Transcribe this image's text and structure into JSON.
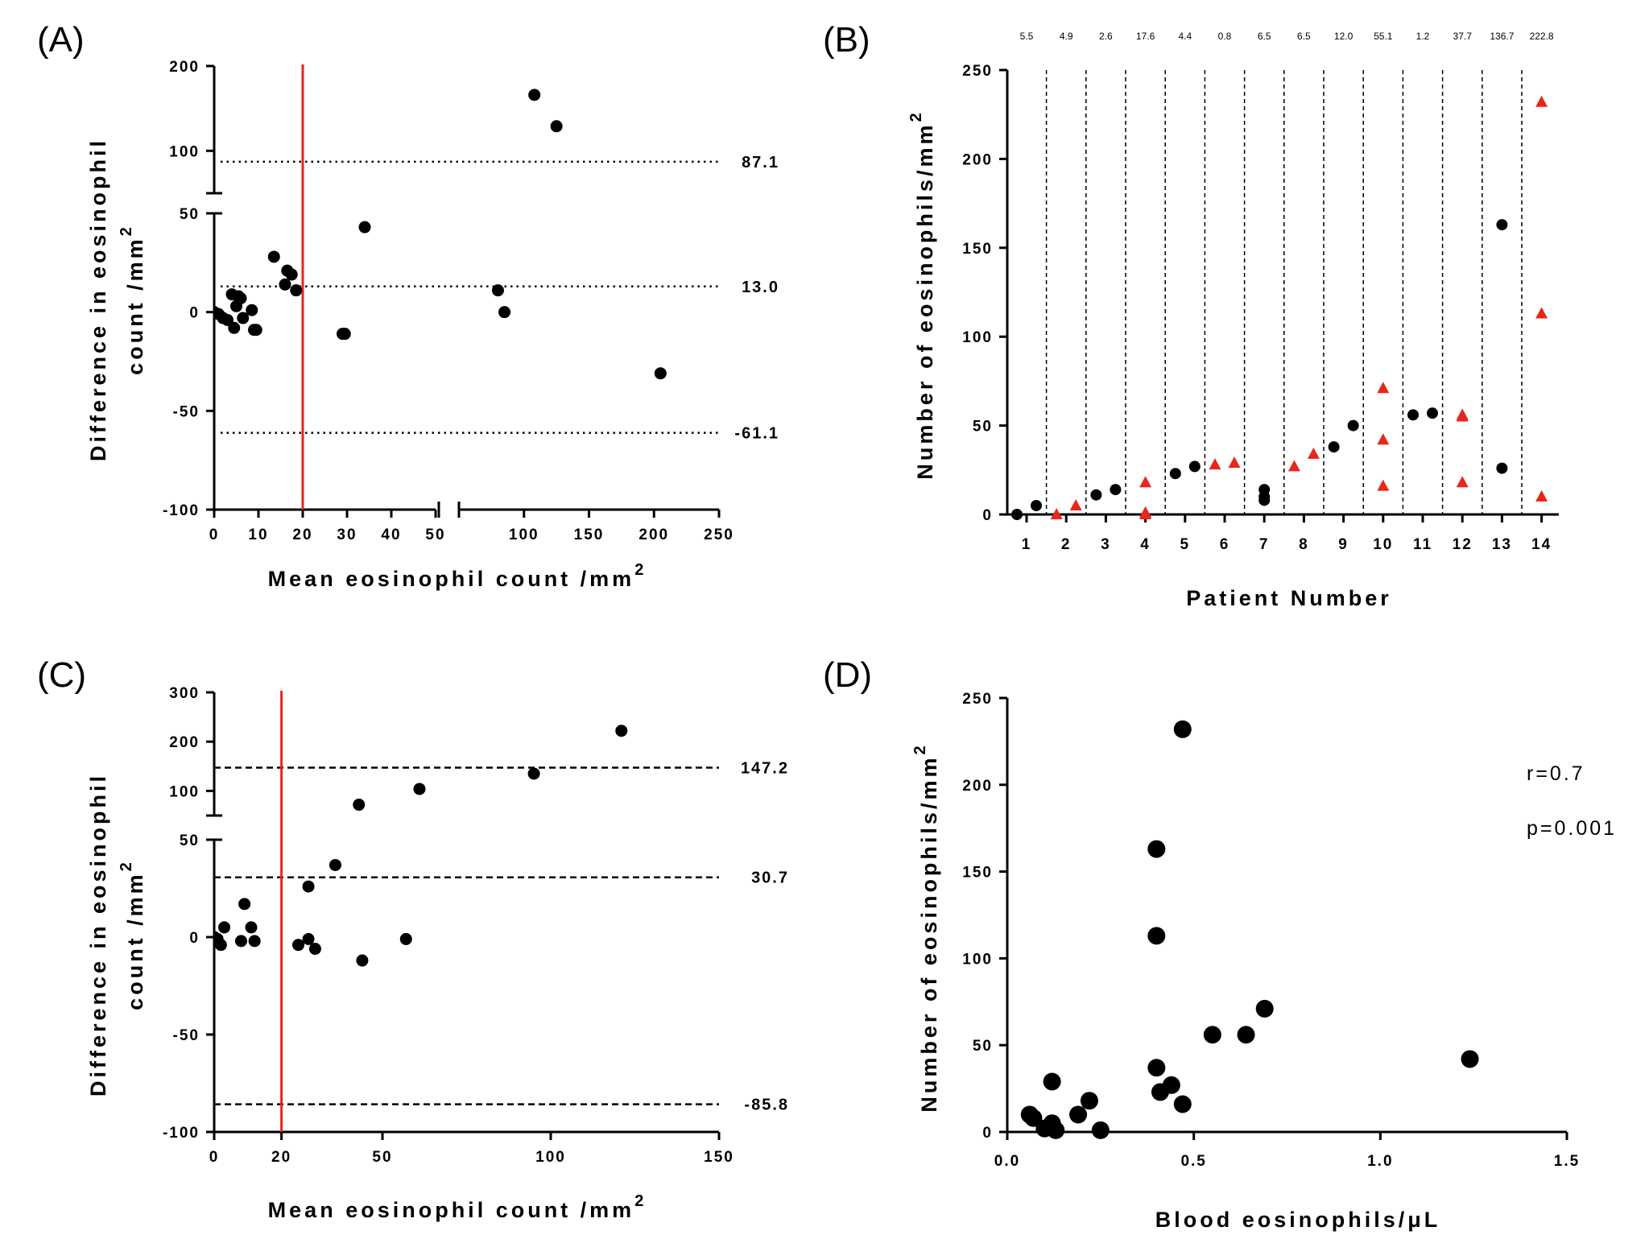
{
  "colors": {
    "red": "#e8261c",
    "point": "#000000",
    "triangle": "#e8261c"
  },
  "chart_data": [
    {
      "panel": "(A)",
      "type": "scatter",
      "subtype": "bland-altman",
      "xlabel": "Mean eosinophil count /mm",
      "ylabel_line1": "Difference in eosinophil",
      "ylabel_line2": "count /mm",
      "superscript": "2",
      "x_segments": [
        {
          "range": [
            0,
            50
          ],
          "ticks": [
            0,
            10,
            20,
            30,
            40,
            50
          ]
        },
        {
          "range": [
            50,
            250
          ],
          "ticks": [
            100,
            150,
            200,
            250
          ]
        }
      ],
      "y_segments": [
        {
          "range": [
            -100,
            50
          ],
          "ticks": [
            -100,
            -50,
            0,
            50
          ]
        },
        {
          "range": [
            50,
            200
          ],
          "ticks": [
            100,
            200
          ]
        }
      ],
      "reference_lines": [
        {
          "y": 87.1,
          "label": "87.1",
          "style": "dotted"
        },
        {
          "y": 13.0,
          "label": "13.0",
          "style": "dotted"
        },
        {
          "y": -61.1,
          "label": "-61.1",
          "style": "dotted"
        }
      ],
      "threshold_x": 20,
      "points": [
        [
          0,
          0
        ],
        [
          1,
          -1
        ],
        [
          2,
          -3
        ],
        [
          3,
          -4
        ],
        [
          4,
          9
        ],
        [
          4.5,
          -8
        ],
        [
          5,
          3
        ],
        [
          5.5,
          8
        ],
        [
          6,
          7
        ],
        [
          6.5,
          -3
        ],
        [
          8.5,
          1
        ],
        [
          9,
          -9
        ],
        [
          9.5,
          -9
        ],
        [
          13.5,
          28
        ],
        [
          16.5,
          21
        ],
        [
          16,
          14
        ],
        [
          17.5,
          19
        ],
        [
          18.5,
          11
        ],
        [
          29,
          -11
        ],
        [
          29.5,
          -11
        ],
        [
          34,
          43
        ],
        [
          80,
          11
        ],
        [
          85,
          0
        ],
        [
          108,
          166
        ],
        [
          125,
          129
        ],
        [
          205,
          -31
        ]
      ]
    },
    {
      "panel": "(B)",
      "type": "scatter",
      "subtype": "strip",
      "xlabel": "Patient Number",
      "ylabel": "Number of eosinophils/mm",
      "superscript": "2",
      "categories": [
        "1",
        "2",
        "3",
        "4",
        "5",
        "6",
        "7",
        "8",
        "9",
        "10",
        "11",
        "12",
        "13",
        "14"
      ],
      "top_labels": [
        "5.5",
        "4.9",
        "2.6",
        "17.6",
        "4.4",
        "0.8",
        "6.5",
        "6.5",
        "12.0",
        "55.1",
        "1.2",
        "37.7",
        "136.7",
        "222.8"
      ],
      "ylim": [
        0,
        250
      ],
      "yticks": [
        0,
        50,
        100,
        150,
        200,
        250
      ],
      "series": [
        {
          "name": "circles",
          "marker": "circle",
          "points": [
            [
              1,
              0
            ],
            [
              1,
              5
            ],
            [
              3,
              11
            ],
            [
              3,
              14
            ],
            [
              5,
              23
            ],
            [
              5,
              27
            ],
            [
              7,
              8
            ],
            [
              7,
              10
            ],
            [
              7,
              14
            ],
            [
              9,
              38
            ],
            [
              9,
              50
            ],
            [
              11,
              56
            ],
            [
              11,
              57
            ],
            [
              13,
              26
            ],
            [
              13,
              163
            ]
          ]
        },
        {
          "name": "triangles",
          "marker": "triangle",
          "points": [
            [
              2,
              0
            ],
            [
              2,
              5
            ],
            [
              4,
              0
            ],
            [
              4,
              1
            ],
            [
              4,
              18
            ],
            [
              6,
              28
            ],
            [
              6,
              29
            ],
            [
              8,
              27
            ],
            [
              8,
              34
            ],
            [
              10,
              16
            ],
            [
              10,
              42
            ],
            [
              10,
              71
            ],
            [
              12,
              18
            ],
            [
              12,
              55
            ],
            [
              12,
              56
            ],
            [
              14,
              10
            ],
            [
              14,
              113
            ],
            [
              14,
              232
            ]
          ]
        }
      ]
    },
    {
      "panel": "(C)",
      "type": "scatter",
      "subtype": "bland-altman",
      "xlabel": "Mean eosinophil count /mm",
      "ylabel_line1": "Difference in eosinophil",
      "ylabel_line2": "count /mm",
      "superscript": "2",
      "x_range": [
        0,
        150
      ],
      "x_ticks": [
        0,
        20,
        50,
        100,
        150
      ],
      "y_segments": [
        {
          "range": [
            -100,
            50
          ],
          "ticks": [
            -100,
            -50,
            0,
            50
          ]
        },
        {
          "range": [
            50,
            300
          ],
          "ticks": [
            100,
            200,
            300
          ]
        }
      ],
      "reference_lines": [
        {
          "y": 147.2,
          "label": "147.2",
          "style": "dashed"
        },
        {
          "y": 30.7,
          "label": "30.7",
          "style": "dashed"
        },
        {
          "y": -85.8,
          "label": "-85.8",
          "style": "dashed"
        }
      ],
      "threshold_x": 20,
      "points": [
        [
          0,
          0
        ],
        [
          1,
          -1
        ],
        [
          2,
          -4
        ],
        [
          3,
          5
        ],
        [
          8,
          -2
        ],
        [
          9,
          17
        ],
        [
          11,
          5
        ],
        [
          12,
          -2
        ],
        [
          25,
          -4
        ],
        [
          28,
          26
        ],
        [
          28,
          -1
        ],
        [
          30,
          -6
        ],
        [
          36,
          37
        ],
        [
          43,
          72
        ],
        [
          44,
          -12
        ],
        [
          57,
          -1
        ],
        [
          61,
          104
        ],
        [
          95,
          135
        ],
        [
          121,
          222
        ]
      ]
    },
    {
      "panel": "(D)",
      "type": "scatter",
      "subtype": "correlation",
      "xlabel": "Blood eosinophils/μL",
      "ylabel": "Number of eosinophils/mm",
      "superscript": "2",
      "xlim": [
        0,
        1.5
      ],
      "ylim": [
        0,
        250
      ],
      "xticks": [
        "0.0",
        "0.5",
        "1.0",
        "1.5"
      ],
      "yticks": [
        0,
        50,
        100,
        150,
        200,
        250
      ],
      "annotations": [
        "r=0.7",
        "p=0.001"
      ],
      "points": [
        [
          0.06,
          10
        ],
        [
          0.07,
          8
        ],
        [
          0.1,
          2
        ],
        [
          0.12,
          5
        ],
        [
          0.12,
          29
        ],
        [
          0.13,
          1
        ],
        [
          0.19,
          10
        ],
        [
          0.22,
          18
        ],
        [
          0.25,
          1
        ],
        [
          0.4,
          37
        ],
        [
          0.41,
          23
        ],
        [
          0.4,
          113
        ],
        [
          0.4,
          163
        ],
        [
          0.44,
          27
        ],
        [
          0.47,
          16
        ],
        [
          0.47,
          232
        ],
        [
          0.55,
          56
        ],
        [
          0.64,
          56
        ],
        [
          0.69,
          71
        ],
        [
          1.24,
          42
        ]
      ]
    }
  ]
}
